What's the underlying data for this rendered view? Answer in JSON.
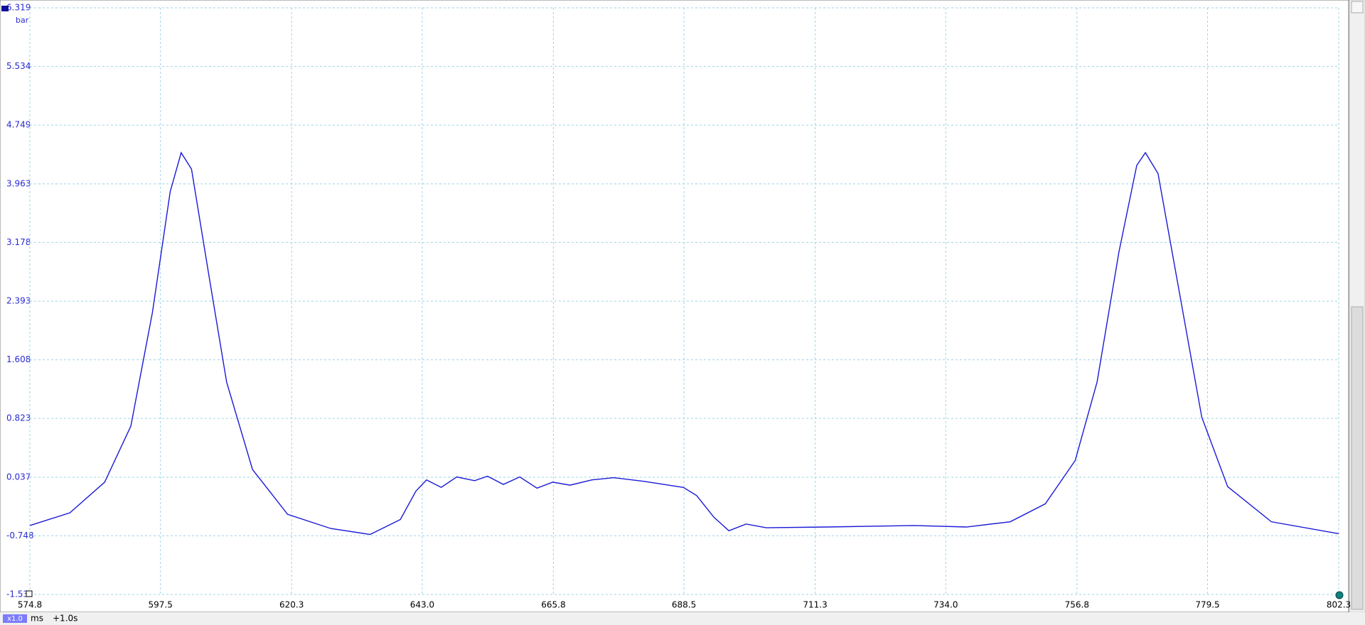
{
  "chart_data": {
    "type": "line",
    "y_unit": "bar",
    "x_unit": "ms",
    "zoom": "x1.0",
    "time_offset": "+1.0s",
    "x": [
      574.8,
      581.76,
      587.8,
      592.35,
      596.1,
      599.2,
      601.1,
      602.9,
      606.0,
      609.0,
      613.5,
      619.6,
      627.1,
      633.95,
      639.2,
      641.9,
      643.75,
      646.3,
      649.0,
      652.1,
      654.35,
      657.1,
      659.95,
      662.95,
      665.7,
      668.7,
      672.5,
      676.3,
      681.6,
      688.4,
      690.7,
      693.7,
      696.3,
      699.3,
      702.8,
      713.4,
      728.5,
      737.6,
      745.2,
      751.3,
      756.5,
      760.3,
      764.1,
      767.2,
      768.7,
      770.9,
      774.7,
      778.5,
      783.0,
      790.6,
      802.3
    ],
    "series": [
      {
        "color": "#1a1ad6",
        "values": [
          -0.61,
          -0.44,
          -0.03,
          0.72,
          2.24,
          3.86,
          4.38,
          4.16,
          2.7,
          1.31,
          0.14,
          -0.46,
          -0.65,
          -0.73,
          -0.53,
          -0.15,
          0.0,
          -0.1,
          0.04,
          -0.01,
          0.05,
          -0.06,
          0.04,
          -0.11,
          -0.03,
          -0.07,
          0.0,
          0.03,
          -0.02,
          -0.1,
          -0.21,
          -0.5,
          -0.68,
          -0.59,
          -0.64,
          -0.63,
          -0.61,
          -0.63,
          -0.56,
          -0.32,
          0.26,
          1.31,
          3.05,
          4.21,
          4.38,
          4.1,
          2.47,
          0.84,
          -0.09,
          -0.56,
          -0.72
        ]
      }
    ],
    "xlim": [
      574.8,
      802.3
    ],
    "xticks": [
      574.8,
      597.5,
      620.3,
      {
        "value": 643,
        "label": "643.0"
      },
      665.8,
      688.5,
      711.3,
      {
        "value": 734,
        "label": "734.0"
      },
      756.8,
      779.5,
      802.3
    ],
    "ylim": [
      -1.533,
      6.319
    ],
    "yticks": [
      {
        "value": -1.533,
        "label": "-1.53"
      },
      -0.748,
      0.037,
      0.823,
      1.608,
      2.393,
      3.178,
      3.963,
      4.749,
      5.534,
      6.319
    ],
    "grid": true
  }
}
